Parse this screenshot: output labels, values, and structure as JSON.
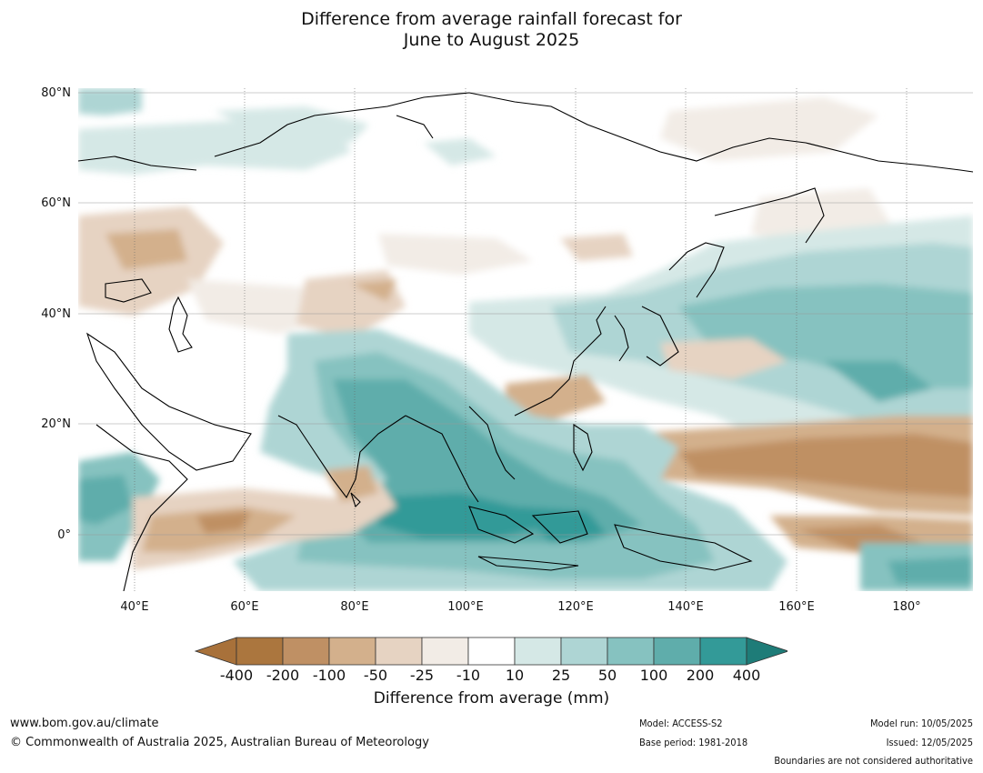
{
  "title_line1": "Difference from average rainfall forecast for",
  "title_line2": "June to August 2025",
  "map": {
    "lat_labels": [
      "80°N",
      "60°N",
      "40°N",
      "20°N",
      "0°"
    ],
    "lon_labels": [
      "40°E",
      "60°E",
      "80°E",
      "100°E",
      "120°E",
      "140°E",
      "160°E",
      "180°"
    ]
  },
  "colorbar": {
    "title": "Difference from average (mm)",
    "ticks": [
      "-400",
      "-200",
      "-100",
      "-50",
      "-25",
      "-10",
      "10",
      "25",
      "50",
      "100",
      "200",
      "400"
    ],
    "colors": [
      "#a8713a",
      "#ab763e",
      "#bf9064",
      "#d3b08c",
      "#e6d3c2",
      "#f2ece6",
      "#ffffff",
      "#d5e8e6",
      "#aed5d4",
      "#86c2c0",
      "#5fadab",
      "#339a98",
      "#1e7c78"
    ]
  },
  "footer": {
    "website": "www.bom.gov.au/climate",
    "copyright": "© Commonwealth of Australia 2025, Australian Bureau of Meteorology",
    "model": "Model: ACCESS-S2",
    "base_period": "Base period: 1981-2018",
    "model_run": "Model run: 10/05/2025",
    "issued": "Issued: 12/05/2025",
    "boundaries_note": "Boundaries are not considered authoritative"
  }
}
